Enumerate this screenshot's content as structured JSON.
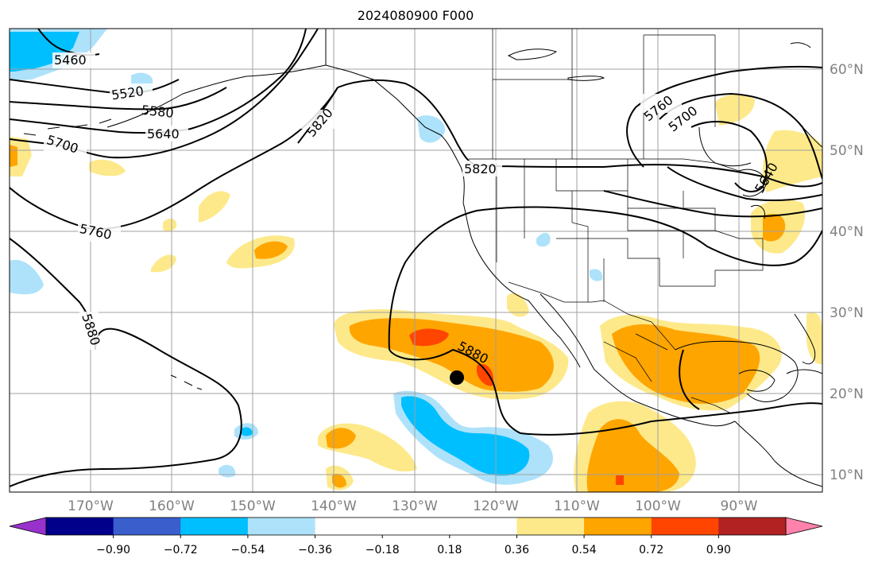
{
  "title": "2024080900 F000",
  "lat_labels": [
    "60°N",
    "50°N",
    "40°N",
    "30°N",
    "20°N",
    "10°N"
  ],
  "lon_labels": [
    "170°W",
    "160°W",
    "150°W",
    "140°W",
    "130°W",
    "120°W",
    "110°W",
    "100°W",
    "90°W"
  ],
  "contour_labels": [
    "5460",
    "5520",
    "5580",
    "5640",
    "5700",
    "5760",
    "5820",
    "5880",
    "5820",
    "5880",
    "5760",
    "5700",
    "5640"
  ],
  "colorbar": {
    "tick_labels": [
      "−0.90",
      "−0.72",
      "−0.54",
      "−0.36",
      "−0.18",
      "0.18",
      "0.36",
      "0.54",
      "0.72",
      "0.90"
    ],
    "colors": [
      "#9932cc",
      "#00008b",
      "#3a5fcd",
      "#00bfff",
      "#aee2fb",
      "#ffffff",
      "#ffffff",
      "#fde98a",
      "#ffa500",
      "#ff4500",
      "#b22222",
      "#ff82ab"
    ]
  },
  "shading_colors": {
    "light_blue": "#aee2fb",
    "blue": "#00bfff",
    "yellow": "#fde98a",
    "orange": "#ffa500",
    "red": "#ff4500"
  },
  "marker": "storm-center-dot"
}
